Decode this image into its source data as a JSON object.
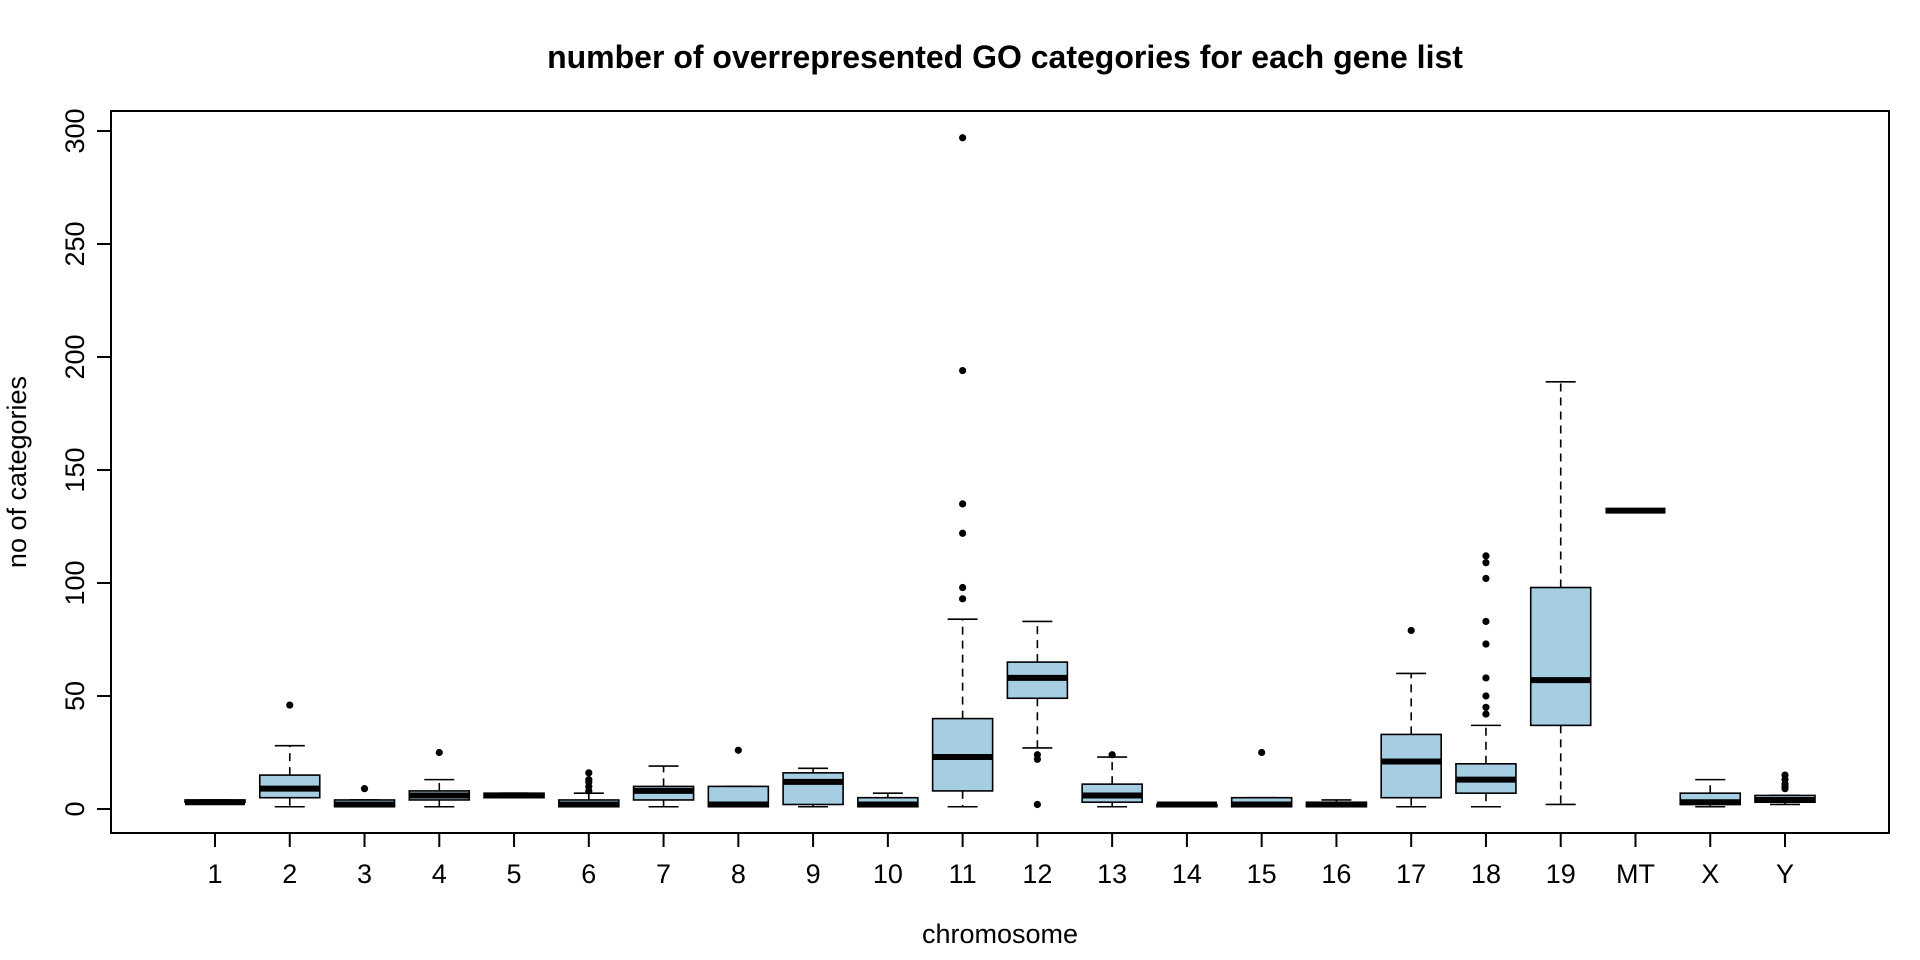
{
  "chart_data": {
    "type": "box",
    "title": "number of overrepresented GO categories for each gene list",
    "xlabel": "chromosome",
    "ylabel": "no of categories",
    "ylim": [
      -10,
      310
    ],
    "yticks": [
      0,
      50,
      100,
      150,
      200,
      250,
      300
    ],
    "box_color": "#a6cee3",
    "categories": [
      "1",
      "2",
      "3",
      "4",
      "5",
      "6",
      "7",
      "8",
      "9",
      "10",
      "11",
      "12",
      "13",
      "14",
      "15",
      "16",
      "17",
      "18",
      "19",
      "MT",
      "X",
      "Y"
    ],
    "boxes": [
      {
        "category": "1",
        "whisker_low": 3,
        "q1": 3,
        "median": 3,
        "q3": 4,
        "whisker_high": 4,
        "outliers": []
      },
      {
        "category": "2",
        "whisker_low": 1,
        "q1": 5,
        "median": 9,
        "q3": 15,
        "whisker_high": 28,
        "outliers": [
          46
        ]
      },
      {
        "category": "3",
        "whisker_low": 1,
        "q1": 1,
        "median": 2,
        "q3": 4,
        "whisker_high": 4,
        "outliers": [
          9
        ]
      },
      {
        "category": "4",
        "whisker_low": 1,
        "q1": 4,
        "median": 6,
        "q3": 8,
        "whisker_high": 13,
        "outliers": [
          25
        ]
      },
      {
        "category": "5",
        "whisker_low": 5,
        "q1": 5,
        "median": 6,
        "q3": 7,
        "whisker_high": 7,
        "outliers": []
      },
      {
        "category": "6",
        "whisker_low": 1,
        "q1": 1,
        "median": 2,
        "q3": 4,
        "whisker_high": 7,
        "outliers": [
          8,
          10,
          12,
          13,
          16
        ]
      },
      {
        "category": "7",
        "whisker_low": 1,
        "q1": 4,
        "median": 8,
        "q3": 10,
        "whisker_high": 19,
        "outliers": []
      },
      {
        "category": "8",
        "whisker_low": 1,
        "q1": 1,
        "median": 2,
        "q3": 10,
        "whisker_high": 10,
        "outliers": [
          26
        ]
      },
      {
        "category": "9",
        "whisker_low": 1,
        "q1": 2,
        "median": 12,
        "q3": 16,
        "whisker_high": 18,
        "outliers": []
      },
      {
        "category": "10",
        "whisker_low": 1,
        "q1": 1,
        "median": 2,
        "q3": 5,
        "whisker_high": 7,
        "outliers": []
      },
      {
        "category": "11",
        "whisker_low": 1,
        "q1": 8,
        "median": 23,
        "q3": 40,
        "whisker_high": 84,
        "outliers": [
          93,
          98,
          122,
          135,
          194,
          297
        ]
      },
      {
        "category": "12",
        "whisker_low": 27,
        "q1": 49,
        "median": 58,
        "q3": 65,
        "whisker_high": 83,
        "outliers": [
          2,
          22,
          24
        ]
      },
      {
        "category": "13",
        "whisker_low": 1,
        "q1": 3,
        "median": 6,
        "q3": 11,
        "whisker_high": 23,
        "outliers": [
          24
        ]
      },
      {
        "category": "14",
        "whisker_low": 1,
        "q1": 1,
        "median": 2,
        "q3": 2,
        "whisker_high": 2,
        "outliers": []
      },
      {
        "category": "15",
        "whisker_low": 1,
        "q1": 1,
        "median": 2,
        "q3": 5,
        "whisker_high": 5,
        "outliers": [
          25
        ]
      },
      {
        "category": "16",
        "whisker_low": 1,
        "q1": 1,
        "median": 2,
        "q3": 3,
        "whisker_high": 4,
        "outliers": []
      },
      {
        "category": "17",
        "whisker_low": 1,
        "q1": 5,
        "median": 21,
        "q3": 33,
        "whisker_high": 60,
        "outliers": [
          79
        ]
      },
      {
        "category": "18",
        "whisker_low": 1,
        "q1": 7,
        "median": 13,
        "q3": 20,
        "whisker_high": 37,
        "outliers": [
          42,
          45,
          50,
          58,
          73,
          83,
          102,
          109,
          112
        ]
      },
      {
        "category": "19",
        "whisker_low": 2,
        "q1": 37,
        "median": 57,
        "q3": 98,
        "whisker_high": 189,
        "outliers": []
      },
      {
        "category": "MT",
        "whisker_low": 132,
        "q1": 132,
        "median": 132,
        "q3": 132,
        "whisker_high": 132,
        "outliers": []
      },
      {
        "category": "X",
        "whisker_low": 1,
        "q1": 2,
        "median": 3,
        "q3": 7,
        "whisker_high": 13,
        "outliers": []
      },
      {
        "category": "Y",
        "whisker_low": 2,
        "q1": 3,
        "median": 4,
        "q3": 6,
        "whisker_high": 6,
        "outliers": [
          9,
          10,
          11,
          13,
          15
        ]
      }
    ]
  }
}
